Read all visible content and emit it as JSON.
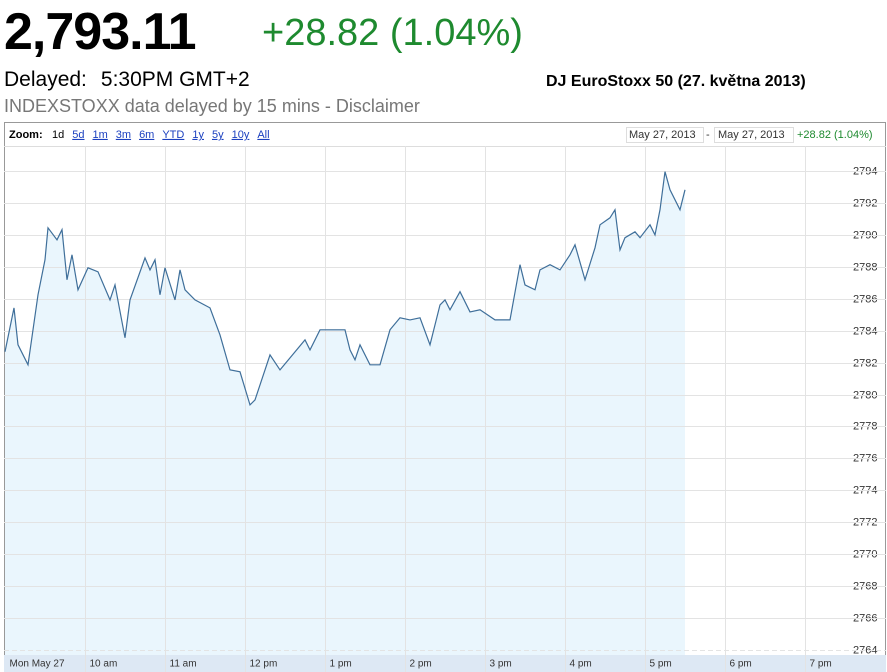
{
  "header": {
    "price": "2,793.11",
    "change": "+28.82 (1.04%)",
    "delayed_label": "Delayed:",
    "time": "5:30PM GMT+2",
    "name": "DJ EuroStoxx 50 (27. května 2013)",
    "note": "INDEXSTOXX data delayed by 15 mins - Disclaimer"
  },
  "toolbar": {
    "zoom_label": "Zoom:",
    "zoom_options": [
      "1d",
      "5d",
      "1m",
      "3m",
      "6m",
      "YTD",
      "1y",
      "5y",
      "10y",
      "All"
    ],
    "date_from": "May 27, 2013",
    "separator": "-",
    "date_to": "May 27, 2013",
    "range_change": "+28.82 (1.04%)"
  },
  "chart_data": {
    "type": "line",
    "color": "#3f6f9a",
    "area_color": "#eaf6fd",
    "grid": true,
    "x": [
      9.0,
      9.113,
      9.163,
      9.288,
      9.413,
      9.5,
      9.538,
      9.65,
      9.713,
      9.775,
      9.838,
      9.913,
      10.038,
      10.163,
      10.313,
      10.375,
      10.5,
      10.563,
      10.75,
      10.813,
      10.875,
      10.938,
      11.0,
      11.125,
      11.188,
      11.25,
      11.375,
      11.563,
      11.688,
      11.813,
      11.938,
      12.063,
      12.125,
      12.25,
      12.313,
      12.438,
      12.563,
      12.75,
      12.813,
      12.938,
      13.125,
      13.25,
      13.313,
      13.375,
      13.438,
      13.563,
      13.688,
      13.813,
      13.938,
      14.063,
      14.188,
      14.313,
      14.438,
      14.5,
      14.563,
      14.688,
      14.813,
      14.938,
      15.125,
      15.313,
      15.438,
      15.5,
      15.625,
      15.688,
      15.813,
      15.938,
      16.063,
      16.125,
      16.25,
      16.375,
      16.438,
      16.563,
      16.625,
      16.688,
      16.75,
      16.875,
      16.938,
      17.063,
      17.125,
      17.188,
      17.25,
      17.313,
      17.438,
      17.5
    ],
    "values": [
      2782.67,
      2785.42,
      2783.11,
      2781.86,
      2786.24,
      2788.43,
      2790.43,
      2789.68,
      2790.31,
      2787.18,
      2788.74,
      2786.55,
      2787.93,
      2787.68,
      2785.92,
      2786.86,
      2783.55,
      2785.92,
      2788.55,
      2787.8,
      2788.43,
      2786.24,
      2787.93,
      2785.92,
      2787.8,
      2786.55,
      2785.92,
      2785.42,
      2783.73,
      2781.54,
      2781.42,
      2779.35,
      2779.66,
      2781.54,
      2782.48,
      2781.54,
      2782.29,
      2783.42,
      2782.79,
      2784.05,
      2784.05,
      2784.05,
      2782.79,
      2782.17,
      2783.11,
      2781.86,
      2781.86,
      2784.05,
      2784.8,
      2784.67,
      2784.8,
      2783.11,
      2785.61,
      2785.92,
      2785.3,
      2786.43,
      2785.17,
      2785.3,
      2784.67,
      2784.67,
      2788.12,
      2786.86,
      2786.55,
      2787.8,
      2788.12,
      2787.8,
      2788.74,
      2789.37,
      2787.18,
      2789.18,
      2790.62,
      2791.06,
      2791.56,
      2789.05,
      2789.81,
      2790.18,
      2789.81,
      2790.62,
      2789.99,
      2791.56,
      2793.94,
      2792.81,
      2791.56,
      2792.81
    ],
    "xlim": [
      9,
      19.45
    ],
    "xticks": [
      {
        "value": 9,
        "label": "Mon May 27"
      },
      {
        "value": 10,
        "label": "10 am"
      },
      {
        "value": 11,
        "label": "11 am"
      },
      {
        "value": 12,
        "label": "12 pm"
      },
      {
        "value": 13,
        "label": "1 pm"
      },
      {
        "value": 14,
        "label": "2 pm"
      },
      {
        "value": 15,
        "label": "3 pm"
      },
      {
        "value": 16,
        "label": "4 pm"
      },
      {
        "value": 17,
        "label": "5 pm"
      },
      {
        "value": 18,
        "label": "6 pm"
      },
      {
        "value": 19,
        "label": "7 pm"
      }
    ],
    "ylim": [
      2763.7,
      2795.55
    ],
    "yticks": [
      2764,
      2766,
      2768,
      2770,
      2772,
      2774,
      2776,
      2778,
      2780,
      2782,
      2784,
      2786,
      2788,
      2790,
      2792,
      2794
    ]
  }
}
